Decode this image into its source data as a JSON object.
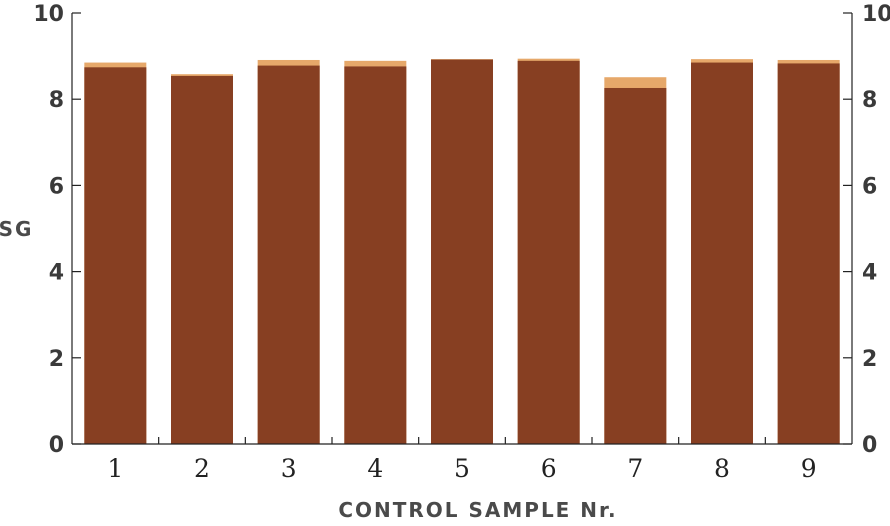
{
  "chart_data": {
    "type": "bar",
    "stacked_overlay": true,
    "title": "",
    "xlabel": "CONTROL SAMPLE Nr.",
    "ylabel": "SG",
    "categories": [
      "1",
      "2",
      "3",
      "4",
      "5",
      "6",
      "7",
      "8",
      "9"
    ],
    "ylim": [
      0,
      10
    ],
    "yticks": [
      "0",
      "2",
      "4",
      "6",
      "8",
      "10"
    ],
    "grid": false,
    "legend": "none",
    "series": [
      {
        "values": [
          8.85,
          8.58,
          8.91,
          8.89,
          8.93,
          8.94,
          8.51,
          8.93,
          8.91
        ],
        "color": "#e6a86a"
      },
      {
        "values": [
          8.74,
          8.54,
          8.78,
          8.76,
          8.92,
          8.89,
          8.26,
          8.85,
          8.83
        ],
        "color": "#873f22"
      }
    ]
  }
}
